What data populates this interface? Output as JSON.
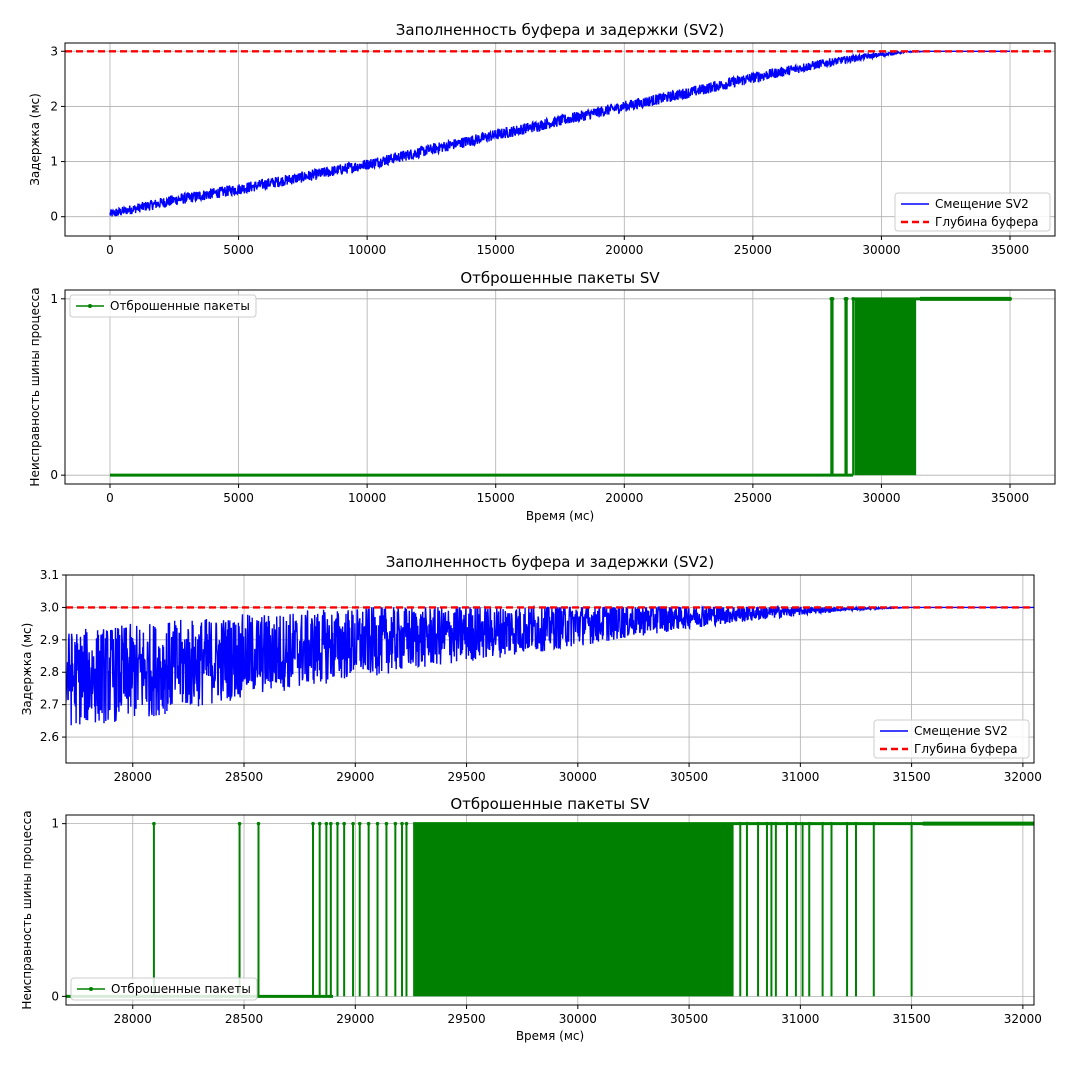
{
  "figure": {
    "background": "#ffffff"
  },
  "chart_data": [
    {
      "type": "line",
      "title": "Заполненность буфера и задержки (SV2)",
      "xlabel": "",
      "ylabel": "Задержка (мс)",
      "xlim": [
        -1750,
        36750
      ],
      "ylim": [
        -0.35,
        3.15
      ],
      "xticks": [
        0,
        5000,
        10000,
        15000,
        20000,
        25000,
        30000,
        35000
      ],
      "yticks": [
        0,
        1,
        2,
        3
      ],
      "ytick_labels": [
        "0",
        "1",
        "2",
        "3"
      ],
      "grid": true,
      "legend": "lower-right",
      "series": [
        {
          "name": "Смещение SV2",
          "color": "#0000ff",
          "style": "solid",
          "x": [
            0,
            2500,
            5000,
            7500,
            10000,
            12500,
            15000,
            17500,
            20000,
            22500,
            25000,
            27500,
            29000,
            30000,
            31000,
            32000,
            33000,
            34000,
            35000
          ],
          "y_center": [
            0.05,
            0.3,
            0.5,
            0.72,
            0.95,
            1.22,
            1.48,
            1.74,
            2.0,
            2.25,
            2.52,
            2.76,
            2.88,
            2.94,
            2.99,
            3.0,
            3.0,
            3.0,
            3.0
          ],
          "y_spread": [
            0.08,
            0.1,
            0.1,
            0.1,
            0.1,
            0.1,
            0.1,
            0.1,
            0.1,
            0.1,
            0.1,
            0.08,
            0.06,
            0.04,
            0.01,
            0,
            0,
            0,
            0
          ]
        },
        {
          "name": "Глубина буфера",
          "color": "#ff0000",
          "style": "dashed",
          "x": [
            -1750,
            36750
          ],
          "y": [
            3,
            3
          ]
        }
      ]
    },
    {
      "type": "line",
      "title": "Отброшенные пакеты SV",
      "xlabel": "Время (мс)",
      "ylabel": "Неисправность шины процесса",
      "xlim": [
        -1750,
        36750
      ],
      "ylim": [
        -0.05,
        1.05
      ],
      "xticks": [
        0,
        5000,
        10000,
        15000,
        20000,
        25000,
        30000,
        35000
      ],
      "yticks": [
        0,
        1
      ],
      "ytick_labels": [
        "0",
        "1"
      ],
      "grid": true,
      "legend": "upper-left",
      "series": [
        {
          "name": "Отброшенные пакеты",
          "color": "#008000",
          "style": "solid-markers",
          "zero_until": 28000,
          "spikes": [
            28050,
            28100,
            28600,
            28650,
            28900
          ],
          "dense_range": [
            28950,
            31350
          ],
          "one_from": 31500,
          "x_end": 35000
        }
      ]
    },
    {
      "type": "line",
      "title": "Заполненность буфера и задержки (SV2)",
      "xlabel": "",
      "ylabel": "Задержка (мс)",
      "xlim": [
        27700,
        32050
      ],
      "ylim": [
        2.52,
        3.1
      ],
      "xticks": [
        28000,
        28500,
        29000,
        29500,
        30000,
        30500,
        31000,
        31500,
        32000
      ],
      "yticks": [
        2.6,
        2.7,
        2.8,
        2.9,
        3.0,
        3.1
      ],
      "ytick_labels": [
        "2.6",
        "2.7",
        "2.8",
        "2.9",
        "3.0",
        "3.1"
      ],
      "grid": true,
      "legend": "lower-right",
      "series": [
        {
          "name": "Смещение SV2",
          "color": "#0000ff",
          "style": "solid",
          "x": [
            27700,
            28000,
            28500,
            29000,
            29500,
            30000,
            30500,
            31000,
            31200,
            31500,
            32050
          ],
          "y_center": [
            2.78,
            2.8,
            2.85,
            2.89,
            2.92,
            2.95,
            2.975,
            2.99,
            2.995,
            3.0,
            3.0
          ],
          "y_spread": [
            0.15,
            0.15,
            0.13,
            0.11,
            0.09,
            0.07,
            0.04,
            0.015,
            0.005,
            0,
            0
          ]
        },
        {
          "name": "Глубина буфера",
          "color": "#ff0000",
          "style": "dashed",
          "x": [
            27700,
            32050
          ],
          "y": [
            3.0,
            3.0
          ]
        }
      ]
    },
    {
      "type": "line",
      "title": "Отброшенные пакеты SV",
      "xlabel": "Время (мс)",
      "ylabel": "Неисправность шины процесса",
      "xlim": [
        27700,
        32050
      ],
      "ylim": [
        -0.05,
        1.05
      ],
      "xticks": [
        28000,
        28500,
        29000,
        29500,
        30000,
        30500,
        31000,
        31500,
        32000
      ],
      "yticks": [
        0,
        1
      ],
      "ytick_labels": [
        "0",
        "1"
      ],
      "grid": true,
      "legend": "lower-left",
      "series": [
        {
          "name": "Отброшенные пакеты",
          "color": "#008000",
          "style": "solid-markers",
          "zero_until": 28000,
          "spikes": [
            28095,
            28480,
            28565,
            28810,
            28840,
            28870,
            28890,
            28920,
            28950,
            28990,
            29020,
            29060,
            29100,
            29140,
            29180,
            29210,
            29230
          ],
          "dense_range": [
            29260,
            30700
          ],
          "spikes_after": [
            30730,
            30760,
            30810,
            30850,
            30870,
            30890,
            30940,
            30980,
            31010,
            31040,
            31100,
            31140,
            31210,
            31250,
            31330,
            31500
          ],
          "one_from": 31550,
          "x_end": 32050
        }
      ]
    }
  ]
}
